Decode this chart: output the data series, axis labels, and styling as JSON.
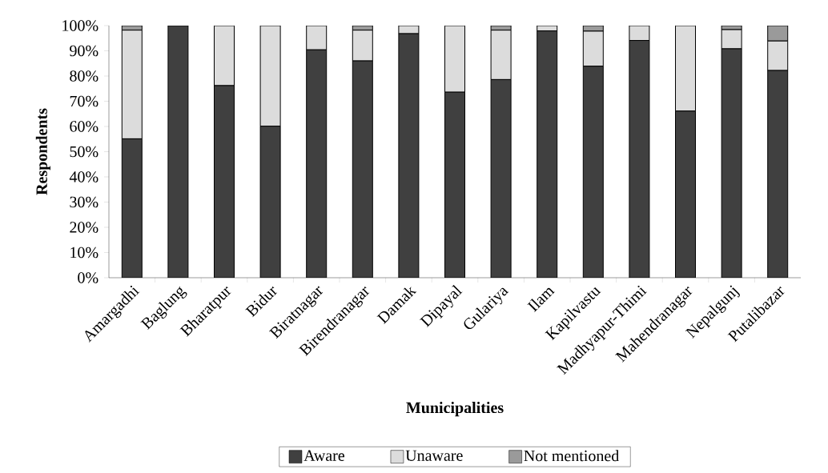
{
  "chart_data": {
    "type": "bar",
    "stacked": true,
    "xlabel": "Municipalities",
    "ylabel": "Respondents",
    "categories": [
      "Amargadhi",
      "Baglung",
      "Bharatpur",
      "Bidur",
      "Biratnagar",
      "Birendranagar",
      "Damak",
      "Dipayal",
      "Gulariya",
      "Ilam",
      "Kapilvastu",
      "Madhyapur-Thimi",
      "Mahendranagar",
      "Nepalgunj",
      "Putalibazar"
    ],
    "series": [
      {
        "name": "Aware",
        "color": "#404040",
        "values": [
          55.1,
          100,
          76.2,
          60.1,
          90.4,
          86.0,
          96.8,
          73.6,
          78.6,
          97.9,
          83.9,
          94.1,
          66.1,
          90.8,
          82.2
        ]
      },
      {
        "name": "Unaware",
        "color": "#dcdcdc",
        "values": [
          43.1,
          0,
          23.8,
          39.9,
          9.6,
          12.2,
          3.2,
          26.4,
          19.6,
          2.1,
          13.9,
          5.9,
          33.9,
          7.6,
          11.7
        ]
      },
      {
        "name": "Not mentioned",
        "color": "#9a9a9a",
        "values": [
          1.8,
          0,
          0,
          0,
          0,
          1.8,
          0,
          0,
          1.8,
          0,
          2.2,
          0,
          0,
          1.6,
          6.1
        ]
      }
    ],
    "ylim": [
      0,
      100
    ],
    "yticks": [
      {
        "value": 0,
        "label": "0%"
      },
      {
        "value": 10,
        "label": "10%"
      },
      {
        "value": 20,
        "label": "20%"
      },
      {
        "value": 30,
        "label": "30%"
      },
      {
        "value": 40,
        "label": "40%"
      },
      {
        "value": 50,
        "label": "50%"
      },
      {
        "value": 60,
        "label": "60%"
      },
      {
        "value": 70,
        "label": "70%"
      },
      {
        "value": 80,
        "label": "80%"
      },
      {
        "value": 90,
        "label": "90%"
      },
      {
        "value": 100,
        "label": "100%"
      }
    ],
    "legend": "bottom"
  }
}
